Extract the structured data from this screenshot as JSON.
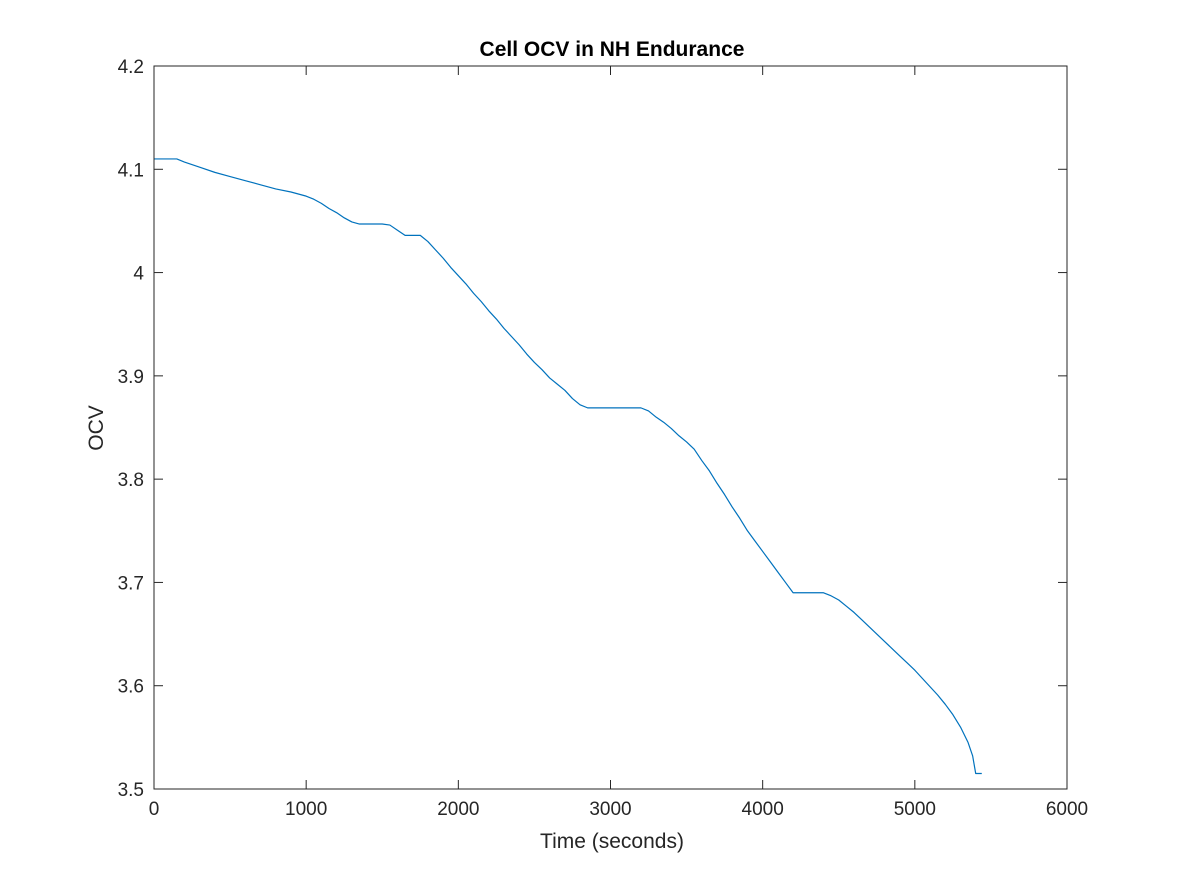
{
  "chart_data": {
    "type": "line",
    "title": "Cell OCV in NH Endurance",
    "xlabel": "Time (seconds)",
    "ylabel": "OCV",
    "xlim": [
      0,
      6000
    ],
    "ylim": [
      3.5,
      4.2
    ],
    "xticks": [
      0,
      1000,
      2000,
      3000,
      4000,
      5000,
      6000
    ],
    "xtick_labels": [
      "0",
      "1000",
      "2000",
      "3000",
      "4000",
      "5000",
      "6000"
    ],
    "yticks": [
      3.5,
      3.6,
      3.7,
      3.8,
      3.9,
      4.0,
      4.1,
      4.2
    ],
    "ytick_labels": [
      "3.5",
      "3.6",
      "3.7",
      "3.8",
      "3.9",
      "4",
      "4.1",
      "4.2"
    ],
    "grid": false,
    "box": true,
    "series": [
      {
        "color": "#0072BD",
        "x": [
          0,
          150,
          200,
          300,
          400,
          500,
          600,
          700,
          800,
          900,
          1000,
          1050,
          1100,
          1150,
          1200,
          1250,
          1300,
          1350,
          1400,
          1450,
          1500,
          1550,
          1600,
          1650,
          1700,
          1750,
          1800,
          1850,
          1900,
          1950,
          2000,
          2050,
          2100,
          2150,
          2200,
          2250,
          2300,
          2350,
          2400,
          2450,
          2500,
          2550,
          2600,
          2650,
          2700,
          2750,
          2800,
          2850,
          2900,
          3000,
          3100,
          3200,
          3250,
          3300,
          3350,
          3400,
          3450,
          3500,
          3550,
          3600,
          3650,
          3700,
          3750,
          3800,
          3850,
          3900,
          3950,
          4000,
          4050,
          4100,
          4150,
          4200,
          4250,
          4300,
          4350,
          4400,
          4450,
          4500,
          4550,
          4600,
          4650,
          4700,
          4750,
          4800,
          4850,
          4900,
          4950,
          5000,
          5050,
          5100,
          5150,
          5200,
          5250,
          5300,
          5350,
          5380,
          5400,
          5420,
          5440
        ],
        "y": [
          4.11,
          4.11,
          4.107,
          4.102,
          4.097,
          4.093,
          4.089,
          4.085,
          4.081,
          4.078,
          4.074,
          4.071,
          4.067,
          4.062,
          4.058,
          4.053,
          4.049,
          4.047,
          4.047,
          4.047,
          4.047,
          4.046,
          4.041,
          4.036,
          4.036,
          4.036,
          4.03,
          4.022,
          4.014,
          4.005,
          3.997,
          3.989,
          3.98,
          3.972,
          3.963,
          3.955,
          3.946,
          3.938,
          3.93,
          3.921,
          3.913,
          3.906,
          3.898,
          3.892,
          3.886,
          3.878,
          3.872,
          3.869,
          3.869,
          3.869,
          3.869,
          3.869,
          3.866,
          3.86,
          3.855,
          3.849,
          3.842,
          3.836,
          3.829,
          3.818,
          3.808,
          3.796,
          3.785,
          3.773,
          3.762,
          3.75,
          3.74,
          3.73,
          3.72,
          3.71,
          3.7,
          3.69,
          3.69,
          3.69,
          3.69,
          3.69,
          3.687,
          3.683,
          3.677,
          3.671,
          3.664,
          3.657,
          3.65,
          3.643,
          3.636,
          3.629,
          3.622,
          3.615,
          3.607,
          3.599,
          3.591,
          3.582,
          3.572,
          3.56,
          3.545,
          3.532,
          3.515,
          3.515,
          3.515
        ]
      }
    ]
  }
}
